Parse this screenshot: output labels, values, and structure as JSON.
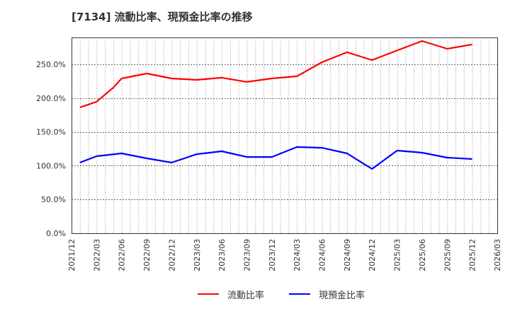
{
  "title": "[7134]  流動比率、現預金比率の推移",
  "chart_data": {
    "type": "line",
    "title": "[7134]  流動比率、現預金比率の推移",
    "xlabel": "",
    "ylabel": "",
    "ylim": [
      0,
      290
    ],
    "grid": true,
    "legend_position": "bottom",
    "x_ticks": [
      "2021/12",
      "2022/03",
      "2022/06",
      "2022/09",
      "2022/12",
      "2023/03",
      "2023/06",
      "2023/09",
      "2023/12",
      "2024/03",
      "2024/06",
      "2024/09",
      "2024/12",
      "2025/03",
      "2025/06",
      "2025/09",
      "2025/12",
      "2026/03"
    ],
    "y_ticks": [
      "0.0%",
      "50.0%",
      "100.0%",
      "150.0%",
      "200.0%",
      "250.0%"
    ],
    "y_tick_values": [
      0,
      50,
      100,
      150,
      200,
      250
    ],
    "series": [
      {
        "name": "流動比率",
        "color": "#ff0000",
        "points": [
          {
            "x": "2022/01",
            "m": 1,
            "y": 186.4
          },
          {
            "x": "2022/03",
            "m": 3,
            "y": 194.8
          },
          {
            "x": "2022/05",
            "m": 5,
            "y": 215.7
          },
          {
            "x": "2022/06",
            "m": 6,
            "y": 229.3
          },
          {
            "x": "2022/09",
            "m": 9,
            "y": 236.6
          },
          {
            "x": "2022/12",
            "m": 12,
            "y": 229.3
          },
          {
            "x": "2023/03",
            "m": 15,
            "y": 227.2
          },
          {
            "x": "2023/06",
            "m": 18,
            "y": 230.4
          },
          {
            "x": "2023/09",
            "m": 21,
            "y": 224.1
          },
          {
            "x": "2023/12",
            "m": 24,
            "y": 229.3
          },
          {
            "x": "2024/03",
            "m": 27,
            "y": 232.5
          },
          {
            "x": "2024/06",
            "m": 30,
            "y": 253.4
          },
          {
            "x": "2024/09",
            "m": 33,
            "y": 268.1
          },
          {
            "x": "2024/12",
            "m": 36,
            "y": 256.5
          },
          {
            "x": "2025/03",
            "m": 39,
            "y": 270.7
          },
          {
            "x": "2025/06",
            "m": 42,
            "y": 284.8
          },
          {
            "x": "2025/09",
            "m": 45,
            "y": 273.3
          },
          {
            "x": "2025/12",
            "m": 48,
            "y": 279.6
          }
        ]
      },
      {
        "name": "現預金比率",
        "color": "#0000ff",
        "points": [
          {
            "x": "2022/01",
            "m": 1,
            "y": 104.7
          },
          {
            "x": "2022/03",
            "m": 3,
            "y": 114.1
          },
          {
            "x": "2022/06",
            "m": 6,
            "y": 118.3
          },
          {
            "x": "2022/09",
            "m": 9,
            "y": 111.0
          },
          {
            "x": "2022/12",
            "m": 12,
            "y": 104.7
          },
          {
            "x": "2023/03",
            "m": 15,
            "y": 117.2
          },
          {
            "x": "2023/06",
            "m": 18,
            "y": 121.4
          },
          {
            "x": "2023/09",
            "m": 21,
            "y": 113.0
          },
          {
            "x": "2023/12",
            "m": 24,
            "y": 113.0
          },
          {
            "x": "2024/03",
            "m": 27,
            "y": 127.7
          },
          {
            "x": "2024/06",
            "m": 30,
            "y": 126.6
          },
          {
            "x": "2024/09",
            "m": 33,
            "y": 118.3
          },
          {
            "x": "2024/12",
            "m": 36,
            "y": 95.3
          },
          {
            "x": "2025/03",
            "m": 39,
            "y": 122.5
          },
          {
            "x": "2025/06",
            "m": 42,
            "y": 119.4
          },
          {
            "x": "2025/09",
            "m": 45,
            "y": 112.0
          },
          {
            "x": "2025/12",
            "m": 48,
            "y": 109.9
          }
        ]
      }
    ]
  },
  "legend": {
    "items": [
      {
        "label": "流動比率",
        "color": "#ff0000"
      },
      {
        "label": "現預金比率",
        "color": "#0000ff"
      }
    ]
  }
}
